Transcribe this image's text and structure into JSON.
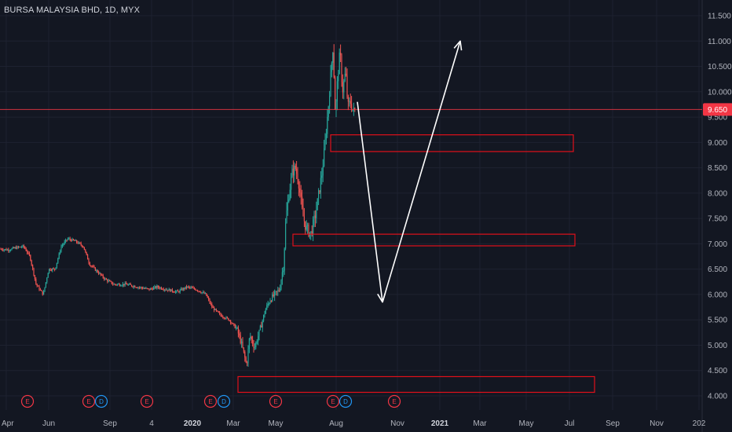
{
  "header": {
    "title": "BURSA MALAYSIA BHD, 1D, MYX"
  },
  "colors": {
    "background": "#131722",
    "grid": "#1e2230",
    "up": "#26a69a",
    "down": "#ef5350",
    "price_line": "#f23645",
    "price_badge": "#f23645",
    "zone": "#e0101a",
    "arrow": "#ffffff",
    "event_earnings": "#f23645",
    "event_dividend": "#2196f3"
  },
  "chart_data": {
    "type": "candlestick",
    "title": "BURSA MALAYSIA BHD, 1D, MYX",
    "ylim": [
      3.9,
      11.55
    ],
    "y_ticks": [
      "4.000",
      "4.500",
      "5.000",
      "5.500",
      "6.000",
      "6.500",
      "7.000",
      "7.500",
      "8.000",
      "8.500",
      "9.000",
      "9.500",
      "10.000",
      "10.500",
      "11.000",
      "11.500"
    ],
    "x_ticks": [
      "Apr",
      "Jun",
      "Sep",
      "4",
      "2020",
      "Mar",
      "May",
      "Aug",
      "Nov",
      "2021",
      "Mar",
      "May",
      "Jul",
      "Sep",
      "Nov",
      "202"
    ],
    "last_price": {
      "value": 9.65,
      "label": "9.650"
    },
    "price_path": [
      [
        0,
        6.9
      ],
      [
        10,
        6.88
      ],
      [
        20,
        6.92
      ],
      [
        30,
        6.95
      ],
      [
        38,
        6.75
      ],
      [
        46,
        6.2
      ],
      [
        55,
        6.0
      ],
      [
        62,
        6.5
      ],
      [
        70,
        6.5
      ],
      [
        78,
        6.95
      ],
      [
        86,
        7.1
      ],
      [
        96,
        7.05
      ],
      [
        106,
        6.95
      ],
      [
        114,
        6.6
      ],
      [
        124,
        6.45
      ],
      [
        134,
        6.3
      ],
      [
        145,
        6.2
      ],
      [
        160,
        6.2
      ],
      [
        175,
        6.15
      ],
      [
        190,
        6.1
      ],
      [
        200,
        6.15
      ],
      [
        212,
        6.1
      ],
      [
        226,
        6.05
      ],
      [
        238,
        6.15
      ],
      [
        250,
        6.1
      ],
      [
        262,
        6.0
      ],
      [
        270,
        5.75
      ],
      [
        280,
        5.6
      ],
      [
        292,
        5.5
      ],
      [
        302,
        5.3
      ],
      [
        308,
        5.0
      ],
      [
        314,
        4.6
      ],
      [
        318,
        5.2
      ],
      [
        324,
        4.95
      ],
      [
        330,
        5.25
      ],
      [
        338,
        5.7
      ],
      [
        344,
        5.9
      ],
      [
        350,
        6.0
      ],
      [
        356,
        6.1
      ],
      [
        361,
        6.6
      ],
      [
        364,
        7.5
      ],
      [
        368,
        8.0
      ],
      [
        372,
        8.4
      ],
      [
        376,
        8.5
      ],
      [
        380,
        8.25
      ],
      [
        385,
        7.6
      ],
      [
        390,
        7.3
      ],
      [
        396,
        7.2
      ],
      [
        402,
        7.6
      ],
      [
        406,
        8.0
      ],
      [
        410,
        8.4
      ],
      [
        414,
        9.0
      ],
      [
        418,
        9.7
      ],
      [
        421,
        10.3
      ],
      [
        424,
        10.9
      ],
      [
        427,
        9.5
      ],
      [
        430,
        10.3
      ],
      [
        433,
        10.8
      ],
      [
        436,
        10.0
      ],
      [
        440,
        10.4
      ],
      [
        443,
        9.7
      ],
      [
        446,
        9.8
      ],
      [
        450,
        9.6
      ],
      [
        453,
        9.65
      ]
    ],
    "zones": [
      {
        "name": "zone-9",
        "from": 8.82,
        "to": 9.15,
        "start": 421,
        "end": 730
      },
      {
        "name": "zone-7",
        "from": 6.96,
        "to": 7.19,
        "start": 373,
        "end": 732
      },
      {
        "name": "zone-4",
        "from": 4.07,
        "to": 4.38,
        "start": 303,
        "end": 757
      }
    ],
    "arrows": [
      {
        "name": "down-arrow",
        "from": [
          455,
          9.8
        ],
        "to": [
          487,
          5.85
        ]
      },
      {
        "name": "up-arrow",
        "from": [
          487,
          5.85
        ],
        "to": [
          586,
          11.0
        ]
      }
    ],
    "events": [
      {
        "label": "E",
        "kind": "earnings",
        "x": 35
      },
      {
        "label": "E",
        "kind": "earnings",
        "x": 113
      },
      {
        "label": "D",
        "kind": "dividend",
        "x": 129
      },
      {
        "label": "E",
        "kind": "earnings",
        "x": 187
      },
      {
        "label": "E",
        "kind": "earnings",
        "x": 268
      },
      {
        "label": "D",
        "kind": "dividend",
        "x": 285
      },
      {
        "label": "E",
        "kind": "earnings",
        "x": 351
      },
      {
        "label": "E",
        "kind": "earnings",
        "x": 424
      },
      {
        "label": "D",
        "kind": "dividend",
        "x": 440
      },
      {
        "label": "E",
        "kind": "earnings",
        "x": 502
      }
    ]
  }
}
